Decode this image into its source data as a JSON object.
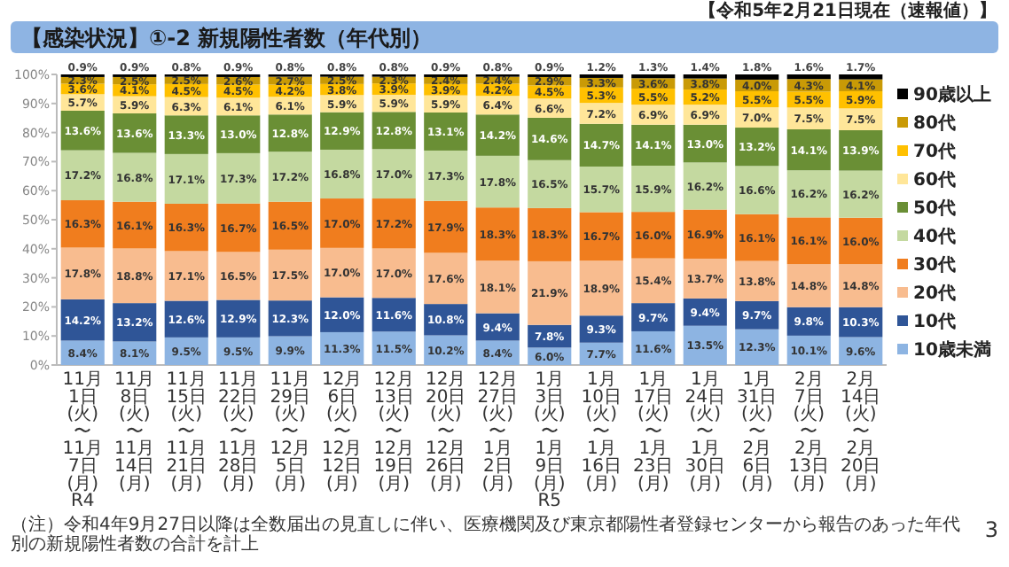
{
  "chart_data": {
    "type": "bar",
    "stacked": true,
    "title": "【感染状況】①-2 新規陽性者数（年代別）",
    "subtitle": "【令和5年2月21日現在（速報値）】",
    "annotations": [
      "（注）令和4年9月27日以降は全数届出の見直しに伴い、医療機関及び東京都陽性者登録センターから報告のあった年代別の新規陽性者数の合計を計上",
      "3"
    ],
    "categories": [
      "11月\n1日\n(火)\n〜\n11月\n7日\n(月)\nR4",
      "11月\n8日\n(火)\n〜\n11月\n14日\n(月)",
      "11月\n15日\n(火)\n〜\n11月\n21日\n(月)",
      "11月\n22日\n(火)\n〜\n11月\n28日\n(月)",
      "11月\n29日\n(火)\n〜\n12月\n5日\n(月)",
      "12月\n6日\n(火)\n〜\n12月\n12日\n(月)",
      "12月\n13日\n(火)\n〜\n12月\n19日\n(月)",
      "12月\n20日\n(火)\n〜\n12月\n26日\n(月)",
      "12月\n27日\n(火)\n〜\n1月\n2日\n(月)",
      "1月\n3日\n(火)\n〜\n1月\n9日\n(月)\nR5",
      "1月\n10日\n(火)\n〜\n1月\n16日\n(月)",
      "1月\n17日\n(火)\n〜\n1月\n23日\n(月)",
      "1月\n24日\n(火)\n〜\n1月\n30日\n(月)",
      "1月\n31日\n(火)\n〜\n2月\n6日\n(月)",
      "2月\n7日\n(火)\n〜\n2月\n13日\n(月)",
      "2月\n14日\n(火)\n〜\n2月\n20日\n(月)"
    ],
    "ylim": [
      0,
      100
    ],
    "yticks": [
      {
        "value": 0,
        "label": "0%"
      },
      {
        "value": 10,
        "label": "10%"
      },
      {
        "value": 20,
        "label": "20%"
      },
      {
        "value": 30,
        "label": "30%"
      },
      {
        "value": 40,
        "label": "40%"
      },
      {
        "value": 50,
        "label": "50%"
      },
      {
        "value": 60,
        "label": "60%"
      },
      {
        "value": 70,
        "label": "70%"
      },
      {
        "value": 80,
        "label": "80%"
      },
      {
        "value": 90,
        "label": "90%"
      },
      {
        "value": 100,
        "label": "100%"
      }
    ],
    "legend": "right",
    "series": [
      {
        "name": "10歳未満",
        "color": "#8db4e2",
        "values": [
          8.4,
          8.1,
          9.5,
          9.5,
          9.9,
          11.3,
          11.5,
          10.2,
          8.4,
          6.0,
          7.7,
          11.6,
          13.5,
          12.3,
          10.1,
          9.6
        ],
        "value_labels": [
          "8.4%",
          "8.1%",
          "9.5%",
          "9.5%",
          "9.9%",
          "11.3%",
          "11.5%",
          "10.2%",
          "8.4%",
          "6.0%",
          "7.7%",
          "11.6%",
          "13.5%",
          "12.3%",
          "10.1%",
          "9.6%"
        ]
      },
      {
        "name": "10代",
        "color": "#2f5597",
        "values": [
          14.2,
          13.2,
          12.6,
          12.9,
          12.3,
          12.0,
          11.6,
          10.8,
          9.4,
          7.8,
          9.3,
          9.7,
          9.4,
          9.7,
          9.8,
          10.3
        ],
        "value_labels": [
          "14.2%",
          "13.2%",
          "12.6%",
          "12.9%",
          "12.3%",
          "12.0%",
          "11.6%",
          "10.8%",
          "9.4%",
          "7.8%",
          "9.3%",
          "9.7%",
          "9.4%",
          "9.7%",
          "9.8%",
          "10.3%"
        ]
      },
      {
        "name": "20代",
        "color": "#f8bc8f",
        "values": [
          17.8,
          18.8,
          17.1,
          16.5,
          17.5,
          17.0,
          17.0,
          17.6,
          18.1,
          21.9,
          18.9,
          15.4,
          13.7,
          13.8,
          14.8,
          14.8
        ],
        "value_labels": [
          "17.8%",
          "18.8%",
          "17.1%",
          "16.5%",
          "17.5%",
          "17.0%",
          "17.0%",
          "17.6%",
          "18.1%",
          "21.9%",
          "18.9%",
          "15.4%",
          "13.7%",
          "13.8%",
          "14.8%",
          "14.8%"
        ]
      },
      {
        "name": "30代",
        "color": "#f07d1e",
        "values": [
          16.3,
          16.1,
          16.3,
          16.7,
          16.5,
          17.0,
          17.2,
          17.9,
          18.3,
          18.3,
          16.7,
          16.0,
          16.9,
          16.1,
          16.1,
          16.0
        ],
        "value_labels": [
          "16.3%",
          "16.1%",
          "16.3%",
          "16.7%",
          "16.5%",
          "17.0%",
          "17.2%",
          "17.9%",
          "18.3%",
          "18.3%",
          "16.7%",
          "16.0%",
          "16.9%",
          "16.1%",
          "16.1%",
          "16.0%"
        ]
      },
      {
        "name": "40代",
        "color": "#c4d9a0",
        "values": [
          17.2,
          16.8,
          17.1,
          17.3,
          17.2,
          16.8,
          17.0,
          17.3,
          17.8,
          16.5,
          15.7,
          15.9,
          16.2,
          16.6,
          16.2,
          16.2
        ],
        "value_labels": [
          "17.2%",
          "16.8%",
          "17.1%",
          "17.3%",
          "17.2%",
          "16.8%",
          "17.0%",
          "17.3%",
          "17.8%",
          "16.5%",
          "15.7%",
          "15.9%",
          "16.2%",
          "16.6%",
          "16.2%",
          "16.2%"
        ]
      },
      {
        "name": "50代",
        "color": "#6a8f35",
        "values": [
          13.6,
          13.6,
          13.3,
          13.0,
          12.8,
          12.9,
          12.8,
          13.1,
          14.2,
          14.6,
          14.7,
          14.1,
          13.0,
          13.2,
          14.1,
          13.9
        ],
        "value_labels": [
          "13.6%",
          "13.6%",
          "13.3%",
          "13.0%",
          "12.8%",
          "12.9%",
          "12.8%",
          "13.1%",
          "14.2%",
          "14.6%",
          "14.7%",
          "14.1%",
          "13.0%",
          "13.2%",
          "14.1%",
          "13.9%"
        ]
      },
      {
        "name": "60代",
        "color": "#ffe699",
        "values": [
          5.7,
          5.9,
          6.3,
          6.1,
          6.1,
          5.9,
          5.9,
          5.9,
          6.4,
          6.6,
          7.2,
          6.9,
          6.9,
          7.0,
          7.5,
          7.5
        ],
        "value_labels": [
          "5.7%",
          "5.9%",
          "6.3%",
          "6.1%",
          "6.1%",
          "5.9%",
          "5.9%",
          "5.9%",
          "6.4%",
          "6.6%",
          "7.2%",
          "6.9%",
          "6.9%",
          "7.0%",
          "7.5%",
          "7.5%"
        ]
      },
      {
        "name": "70代",
        "color": "#ffc000",
        "values": [
          3.6,
          4.1,
          4.5,
          4.5,
          4.2,
          3.8,
          3.9,
          3.9,
          4.2,
          4.5,
          5.3,
          5.5,
          5.2,
          5.5,
          5.5,
          5.9
        ],
        "value_labels": [
          "3.6%",
          "4.1%",
          "4.5%",
          "4.5%",
          "4.2%",
          "3.8%",
          "3.9%",
          "3.9%",
          "4.2%",
          "4.5%",
          "5.3%",
          "5.5%",
          "5.2%",
          "5.5%",
          "5.5%",
          "5.9%"
        ]
      },
      {
        "name": "80代",
        "color": "#c99a06",
        "values": [
          2.3,
          2.5,
          2.5,
          2.6,
          2.7,
          2.5,
          2.3,
          2.4,
          2.4,
          2.9,
          3.3,
          3.6,
          3.8,
          4.0,
          4.3,
          4.1
        ],
        "value_labels": [
          "2.3%",
          "2.5%",
          "2.5%",
          "2.6%",
          "2.7%",
          "2.5%",
          "2.3%",
          "2.4%",
          "2.4%",
          "2.9%",
          "3.3%",
          "3.6%",
          "3.8%",
          "4.0%",
          "4.3%",
          "4.1%"
        ]
      },
      {
        "name": "90歳以上",
        "color": "#000000",
        "values": [
          0.9,
          0.9,
          0.8,
          0.9,
          0.8,
          0.8,
          0.8,
          0.9,
          0.8,
          0.9,
          1.2,
          1.3,
          1.4,
          1.8,
          1.6,
          1.7
        ],
        "value_labels": [
          "0.9%",
          "0.9%",
          "0.8%",
          "0.9%",
          "0.8%",
          "0.8%",
          "0.8%",
          "0.9%",
          "0.8%",
          "0.9%",
          "1.2%",
          "1.3%",
          "1.4%",
          "1.8%",
          "1.6%",
          "1.7%"
        ]
      }
    ]
  }
}
